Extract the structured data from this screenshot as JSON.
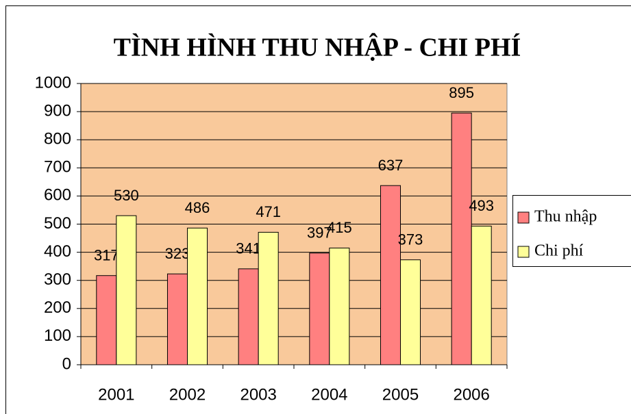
{
  "chart_data": {
    "type": "bar",
    "title": "TÌNH HÌNH THU NHẬP - CHI PHÍ",
    "categories": [
      "2001",
      "2002",
      "2003",
      "2004",
      "2005",
      "2006"
    ],
    "series": [
      {
        "name": "Thu nhập",
        "color": "#ff8080",
        "values": [
          317,
          323,
          341,
          397,
          637,
          895
        ]
      },
      {
        "name": "Chi phí",
        "color": "#ffff99",
        "values": [
          530,
          486,
          471,
          415,
          373,
          493
        ]
      }
    ],
    "ylim": [
      0,
      1000
    ],
    "yticks": [
      0,
      100,
      200,
      300,
      400,
      500,
      600,
      700,
      800,
      900,
      1000
    ],
    "grid": true,
    "legend": "right",
    "background": "#f9c99b"
  }
}
